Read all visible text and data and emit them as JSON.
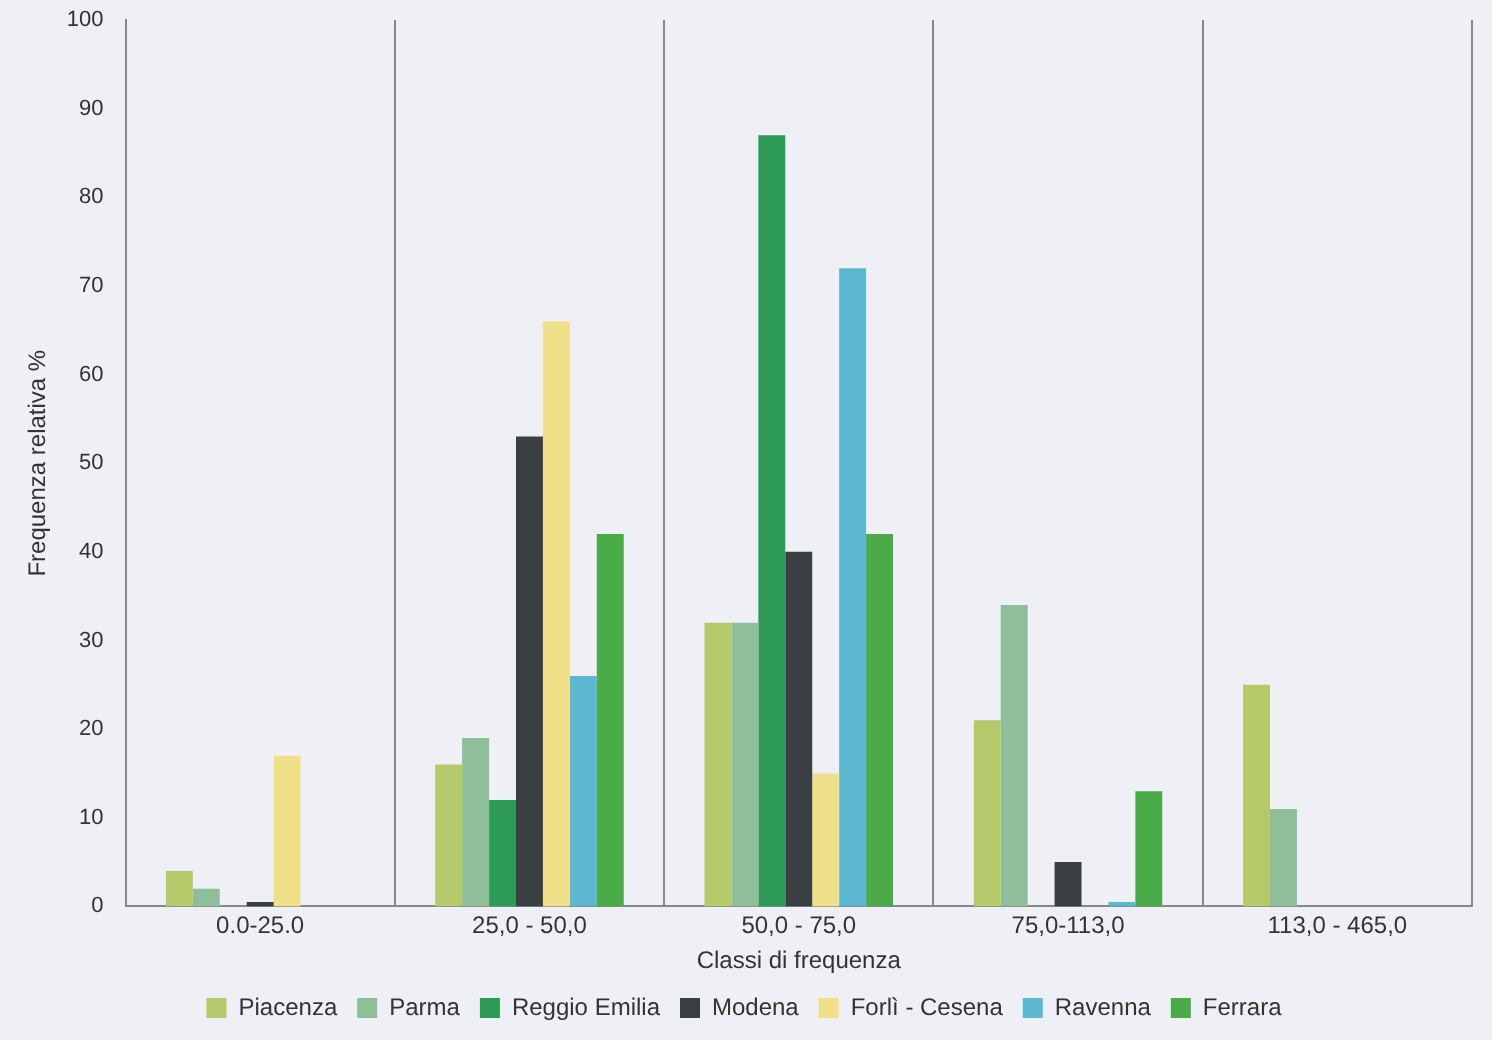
{
  "chart_data": {
    "type": "bar",
    "xlabel": "Classi di frequenza",
    "ylabel": "Frequenza relativa %",
    "categories": [
      "0.0-25.0",
      "25,0 - 50,0",
      "50,0 - 75,0",
      "75,0-113,0",
      "113,0 - 465,0"
    ],
    "series": [
      {
        "name": "Piacenza",
        "color": "#b5c96a",
        "values": [
          4,
          16,
          32,
          21,
          25
        ]
      },
      {
        "name": "Parma",
        "color": "#8fbf9a",
        "values": [
          2,
          19,
          32,
          34,
          11
        ]
      },
      {
        "name": "Reggio Emilia",
        "color": "#2e9a58",
        "values": [
          0,
          12,
          87,
          0,
          0
        ]
      },
      {
        "name": "Modena",
        "color": "#3a3f42",
        "values": [
          0.5,
          53,
          40,
          5,
          0
        ]
      },
      {
        "name": "Forlì - Cesena",
        "color": "#f0e08a",
        "values": [
          17,
          66,
          15,
          0,
          0
        ]
      },
      {
        "name": "Ravenna",
        "color": "#5bb8d0",
        "values": [
          0,
          26,
          72,
          0.5,
          0
        ]
      },
      {
        "name": "Ferrara",
        "color": "#4aab48",
        "values": [
          0,
          42,
          42,
          13,
          0
        ]
      }
    ],
    "ylim": [
      0,
      100
    ],
    "yticks": [
      0,
      10,
      20,
      30,
      40,
      50,
      60,
      70,
      80,
      90,
      100
    ],
    "grid": "x",
    "legend": "bottom"
  }
}
